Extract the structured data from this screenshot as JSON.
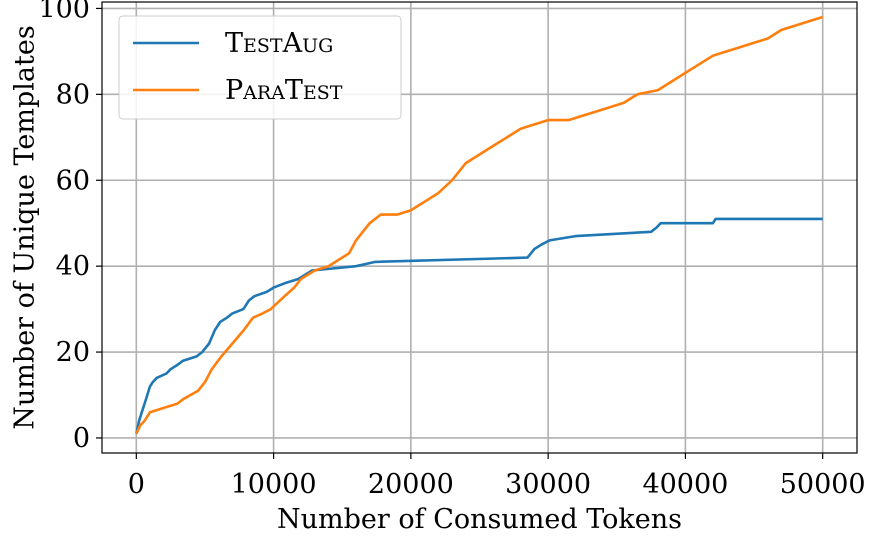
{
  "chart_data": {
    "type": "line",
    "xlabel": "Number of Consumed Tokens",
    "ylabel": "Number of Unique Templates",
    "xlim": [
      -2500,
      52500
    ],
    "ylim": [
      -3.5,
      101.5
    ],
    "xticks": [
      0,
      10000,
      20000,
      30000,
      40000,
      50000
    ],
    "yticks": [
      0,
      20,
      40,
      60,
      80,
      100
    ],
    "grid": true,
    "legend_position": "top-left",
    "series": [
      {
        "name": "TestAug",
        "color": "#1f77b4",
        "x": [
          0,
          200,
          400,
          600,
          800,
          1000,
          1200,
          1500,
          2200,
          2500,
          3000,
          3400,
          4400,
          4800,
          5300,
          5700,
          6100,
          6600,
          7000,
          7800,
          8200,
          8600,
          9500,
          10000,
          10800,
          11800,
          12300,
          12800,
          16000,
          17400,
          28500,
          29000,
          29500,
          30100,
          32000,
          37500,
          37900,
          38200,
          42000,
          42200,
          50000
        ],
        "y": [
          1,
          4,
          6,
          8,
          10,
          12,
          13,
          14,
          15,
          16,
          17,
          18,
          19,
          20,
          22,
          25,
          27,
          28,
          29,
          30,
          32,
          33,
          34,
          35,
          36,
          37,
          38,
          39,
          40,
          41,
          42,
          44,
          45,
          46,
          47,
          48,
          49,
          50,
          50,
          51,
          51
        ]
      },
      {
        "name": "ParaTest",
        "color": "#ff7f0e",
        "x": [
          0,
          300,
          600,
          1000,
          2000,
          3000,
          3400,
          4500,
          5000,
          5500,
          6200,
          7000,
          7800,
          8500,
          9200,
          9800,
          10800,
          11500,
          12000,
          12500,
          13000,
          14000,
          14500,
          15500,
          16000,
          16500,
          17000,
          17800,
          19000,
          20000,
          20500,
          21000,
          22000,
          23000,
          24000,
          25000,
          26000,
          27000,
          28000,
          29000,
          30000,
          31500,
          32500,
          33500,
          34500,
          35500,
          36500,
          38000,
          39000,
          40000,
          41000,
          42000,
          43000,
          44000,
          45000,
          46000,
          47000,
          48000,
          49000,
          50000
        ],
        "y": [
          1,
          3,
          4,
          6,
          7,
          8,
          9,
          11,
          13,
          16,
          19,
          22,
          25,
          28,
          29,
          30,
          33,
          35,
          37,
          38,
          39,
          40,
          41,
          43,
          46,
          48,
          50,
          52,
          52,
          53,
          54,
          55,
          57,
          60,
          64,
          66,
          68,
          70,
          72,
          73,
          74,
          74,
          75,
          76,
          77,
          78,
          80,
          81,
          83,
          85,
          87,
          89,
          90,
          91,
          92,
          93,
          95,
          96,
          97,
          98
        ]
      }
    ]
  }
}
